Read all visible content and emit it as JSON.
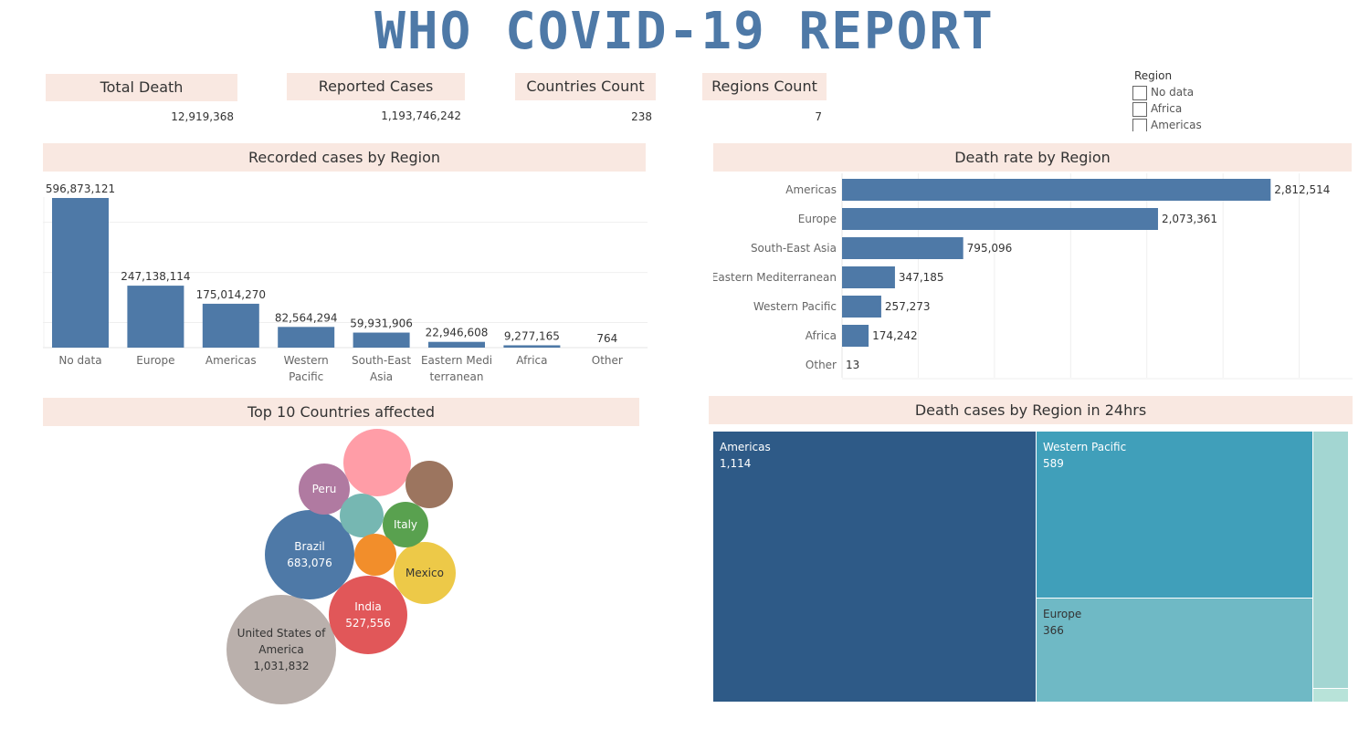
{
  "title": "WHO COVID-19 REPORT",
  "kpis": [
    {
      "label": "Total Death",
      "value": "12,919,368"
    },
    {
      "label": "Reported Cases",
      "value": "1,193,746,242"
    },
    {
      "label": "Countries Count",
      "value": "238"
    },
    {
      "label": "Regions Count",
      "value": "7"
    }
  ],
  "legend": {
    "title": "Region",
    "items": [
      "No data",
      "Africa",
      "Americas"
    ]
  },
  "colors": {
    "bar": "#4e79a7",
    "header_bg": "#f9e8e1",
    "title": "#4e79a7"
  },
  "chart_data": [
    {
      "type": "bar",
      "title": "Recorded cases by Region",
      "categories": [
        [
          "No data"
        ],
        [
          "Europe"
        ],
        [
          "Americas"
        ],
        [
          "Western",
          "Pacific"
        ],
        [
          "South-East",
          "Asia"
        ],
        [
          "Eastern Medi",
          "terranean"
        ],
        [
          "Africa"
        ],
        [
          "Other"
        ]
      ],
      "values": [
        596873121,
        247138114,
        175014270,
        82564294,
        59931906,
        22946608,
        9277165,
        764
      ],
      "labels": [
        "596,873,121",
        "247,138,114",
        "175,014,270",
        "82,564,294",
        "59,931,906",
        "22,946,608",
        "9,277,165",
        "764"
      ],
      "ylim": [
        0,
        600000000
      ],
      "grid": true
    },
    {
      "type": "bar",
      "orientation": "horizontal",
      "title": "Death rate by Region",
      "categories": [
        "Americas",
        "Europe",
        "South-East Asia",
        "Eastern Mediterranean",
        "Western Pacific",
        "Africa",
        "Other"
      ],
      "values": [
        2812514,
        2073361,
        795096,
        347185,
        257273,
        174242,
        13
      ],
      "labels": [
        "2,812,514",
        "2,073,361",
        "795,096",
        "347,185",
        "257,273",
        "174,242",
        "13"
      ],
      "xlim": [
        0,
        3350000
      ],
      "grid": true
    },
    {
      "type": "bubble",
      "title": "Top 10 Countries affected",
      "items": [
        {
          "label": "United States of America",
          "lines": [
            "United States of",
            "America"
          ],
          "value_label": "1,031,832",
          "value": 1031832,
          "color": "#bab0ac",
          "text_color": "#333333"
        },
        {
          "label": "Brazil",
          "lines": [
            "Brazil"
          ],
          "value_label": "683,076",
          "value": 683076,
          "color": "#4e79a7",
          "text_color": "#ffffff"
        },
        {
          "label": "India",
          "lines": [
            "India"
          ],
          "value_label": "527,556",
          "value": 527556,
          "color": "#e15759",
          "text_color": "#ffffff"
        },
        {
          "label": "Mexico",
          "lines": [
            "Mexico"
          ],
          "value_label": "",
          "color": "#edc948",
          "text_color": "#333333"
        },
        {
          "label": "Peru",
          "lines": [
            "Peru"
          ],
          "value_label": "",
          "color": "#b07aa1",
          "text_color": "#ffffff"
        },
        {
          "label": "Italy",
          "lines": [
            "Italy"
          ],
          "value_label": "",
          "color": "#59a14f",
          "text_color": "#ffffff"
        },
        {
          "label": "",
          "lines": [],
          "value_label": "",
          "color": "#ff9da7",
          "text_color": "#ffffff"
        },
        {
          "label": "",
          "lines": [],
          "value_label": "",
          "color": "#9c755f",
          "text_color": "#ffffff"
        },
        {
          "label": "",
          "lines": [],
          "value_label": "",
          "color": "#76b7b2",
          "text_color": "#ffffff"
        },
        {
          "label": "",
          "lines": [],
          "value_label": "",
          "color": "#f28e2b",
          "text_color": "#ffffff"
        }
      ]
    },
    {
      "type": "treemap",
      "title": "Death cases by Region in 24hrs",
      "items": [
        {
          "label": "Americas",
          "value_label": "1,114",
          "value": 1114,
          "color": "#2e5a87",
          "text_color": "#ffffff"
        },
        {
          "label": "Western Pacific",
          "value_label": "589",
          "value": 589,
          "color": "#409fba",
          "text_color": "#ffffff"
        },
        {
          "label": "Europe",
          "value_label": "366",
          "value": 366,
          "color": "#6fb9c5",
          "text_color": "#333333"
        },
        {
          "label": "",
          "value_label": "",
          "color": "#a3d6d2",
          "text_color": "#333333"
        },
        {
          "label": "",
          "value_label": "",
          "color": "#b8e3d9",
          "text_color": "#333333"
        }
      ]
    }
  ]
}
